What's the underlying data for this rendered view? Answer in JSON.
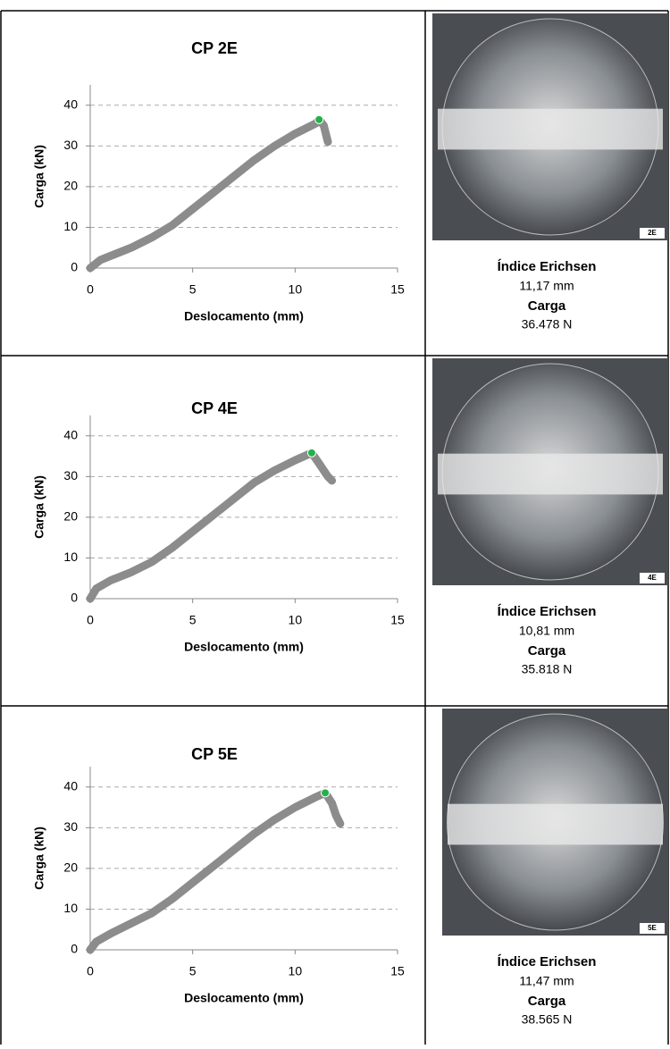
{
  "chart_data": [
    {
      "type": "line",
      "title": "CP 2E",
      "xlabel": "Deslocamento (mm)",
      "ylabel": "Carga (kN)",
      "xlim": [
        0,
        15
      ],
      "ylim": [
        0,
        45
      ],
      "xticks": [
        0,
        5,
        10,
        15
      ],
      "yticks": [
        0,
        10,
        20,
        30,
        40
      ],
      "grid": true,
      "series": [
        {
          "color": "#8c8c8c",
          "x": [
            0,
            0.5,
            1,
            2,
            3,
            4,
            5,
            6,
            7,
            8,
            9,
            10,
            11,
            11.17,
            11.4,
            11.5,
            11.6
          ],
          "values": [
            0,
            2,
            3,
            5,
            7.5,
            10.5,
            14.5,
            18.5,
            22.5,
            26.5,
            30,
            33,
            35.5,
            36.478,
            35,
            33,
            31
          ]
        }
      ],
      "peak": {
        "x": 11.17,
        "y": 36.478,
        "color": "#22b14c"
      }
    },
    {
      "type": "line",
      "title": "CP 4E",
      "xlabel": "Deslocamento (mm)",
      "ylabel": "Carga (kN)",
      "xlim": [
        0,
        15
      ],
      "ylim": [
        0,
        45
      ],
      "xticks": [
        0,
        5,
        10,
        15
      ],
      "yticks": [
        0,
        10,
        20,
        30,
        40
      ],
      "grid": true,
      "series": [
        {
          "color": "#8c8c8c",
          "x": [
            0,
            0.3,
            1,
            2,
            3,
            4,
            5,
            6,
            7,
            8,
            9,
            10,
            10.81,
            11.2,
            11.6,
            11.8
          ],
          "values": [
            0,
            2.5,
            4.5,
            6.5,
            9,
            12.5,
            16.5,
            20.5,
            24.5,
            28.5,
            31.5,
            34,
            35.818,
            33,
            30,
            29
          ]
        }
      ],
      "peak": {
        "x": 10.81,
        "y": 35.818,
        "color": "#22b14c"
      }
    },
    {
      "type": "line",
      "title": "CP 5E",
      "xlabel": "Deslocamento (mm)",
      "ylabel": "Carga (kN)",
      "xlim": [
        0,
        15
      ],
      "ylim": [
        0,
        45
      ],
      "xticks": [
        0,
        5,
        10,
        15
      ],
      "yticks": [
        0,
        10,
        20,
        30,
        40
      ],
      "grid": true,
      "series": [
        {
          "color": "#8c8c8c",
          "x": [
            0,
            0.3,
            1,
            2,
            3,
            4,
            5,
            6,
            7,
            8,
            9,
            10,
            11,
            11.47,
            11.8,
            12,
            12.2
          ],
          "values": [
            0,
            2,
            4,
            6.5,
            9,
            12.5,
            16.5,
            20.5,
            24.5,
            28.5,
            32,
            35,
            37.5,
            38.565,
            36,
            33,
            31
          ]
        }
      ],
      "peak": {
        "x": 11.47,
        "y": 38.565,
        "color": "#22b14c"
      }
    }
  ],
  "panels": [
    {
      "photo_label": "2E",
      "index_label": "Índice Erichsen",
      "index_value": "11,17 mm",
      "load_label": "Carga",
      "load_value": "36.478 N"
    },
    {
      "photo_label": "4E",
      "index_label": "Índice Erichsen",
      "index_value": "10,81 mm",
      "load_label": "Carga",
      "load_value": "35.818 N"
    },
    {
      "photo_label": "5E",
      "index_label": "Índice Erichsen",
      "index_value": "11,47 mm",
      "load_label": "Carga",
      "load_value": "38.565 N"
    }
  ]
}
